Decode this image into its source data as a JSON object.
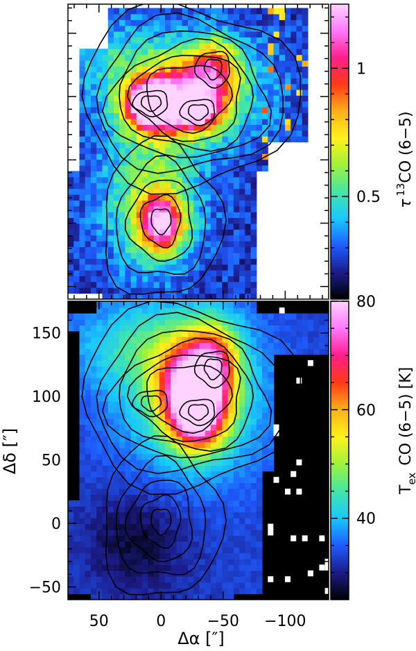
{
  "chart_data": [
    {
      "type": "heatmap",
      "panel": "top",
      "quantity": "optical depth",
      "colorbar": {
        "label_prefix": "τ",
        "label_sup": "13",
        "label_suffix": "CO (6−5)",
        "ticks": [
          0.5,
          1
        ],
        "tick_labels": [
          "0.5",
          "1"
        ],
        "range": [
          0.1,
          1.25
        ]
      },
      "colormap": [
        "#000000",
        "#1c1c8a",
        "#1e5cff",
        "#19c8ff",
        "#43e6a8",
        "#9ff23a",
        "#fff21a",
        "#ffb01a",
        "#ff3a14",
        "#ff1e8a",
        "#ff78ff",
        "#ffd2ff"
      ],
      "mask_color": "#ffffff",
      "contours": "black",
      "peaks": [
        {
          "x": 0,
          "y": 0,
          "value": 0.95
        },
        {
          "x": 10,
          "y": 93,
          "value": 1.1
        },
        {
          "x": -30,
          "y": 88,
          "value": 0.85
        },
        {
          "x": -42,
          "y": 120,
          "value": 0.8
        }
      ]
    },
    {
      "type": "heatmap",
      "panel": "bottom",
      "quantity": "excitation temperature",
      "colorbar": {
        "label_prefix": "T",
        "label_sub": "ex",
        "label_suffix": "CO (6−5) [K]",
        "ticks": [
          40,
          60,
          80
        ],
        "tick_labels": [
          "40",
          "60",
          "80"
        ],
        "range": [
          25,
          80
        ]
      },
      "xlabel": "Δα [″]",
      "ylabel": "Δδ [″]",
      "xlim": [
        75,
        -135
      ],
      "ylim": [
        -60,
        175
      ],
      "xticks": [
        50,
        0,
        -50,
        -100
      ],
      "xtick_labels": [
        "50",
        "0",
        "−50",
        "−100"
      ],
      "yticks": [
        -50,
        0,
        50,
        100,
        150
      ],
      "ytick_labels": [
        "−50",
        "0",
        "50",
        "100",
        "150"
      ],
      "peaks": [
        {
          "x": -30,
          "y": 85,
          "value": 78
        },
        {
          "x": -20,
          "y": 110,
          "value": 74
        },
        {
          "x": -42,
          "y": 125,
          "value": 72
        }
      ]
    }
  ]
}
